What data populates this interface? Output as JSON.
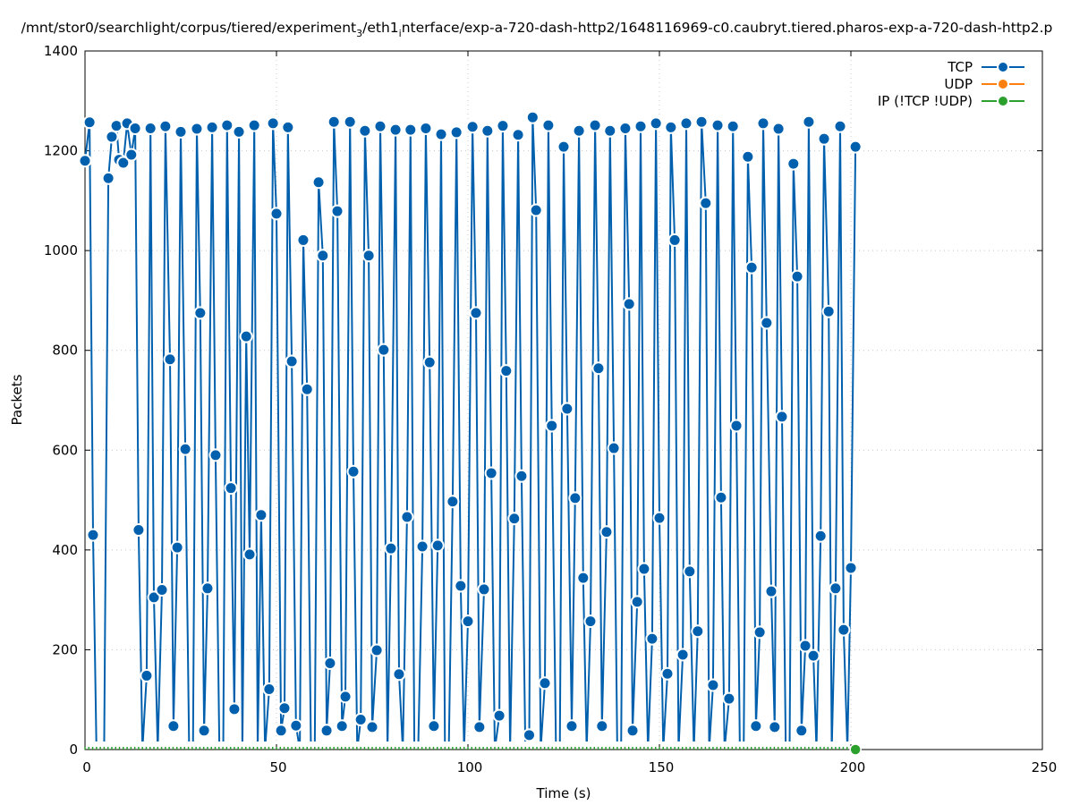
{
  "chart_data": {
    "type": "line",
    "title": "/mnt/stor0/searchlight/corpus/tiered/experiment_3/eth1_interface/exp-a-720-dash-http2/1648116969-c0.caubryt.tiered.pharos-exp-a-720-dash-http2.p",
    "xlabel": "Time (s)",
    "ylabel": "Packets",
    "xlim": [
      0,
      250
    ],
    "ylim": [
      0,
      1400
    ],
    "xticks": [
      "0",
      "50",
      "100",
      "150",
      "200",
      "250"
    ],
    "yticks": [
      "0",
      "200",
      "400",
      "600",
      "800",
      "1000",
      "1200",
      "1400"
    ],
    "grid": true,
    "legend_position": "top-right",
    "series": [
      {
        "name": "TCP",
        "color": "#0060ad",
        "points": [
          [
            0,
            1180
          ],
          [
            1.2,
            1257
          ],
          [
            2.1,
            430
          ],
          [
            3,
            0
          ],
          [
            5,
            0
          ],
          [
            6.1,
            1145
          ],
          [
            7.0,
            1228
          ],
          [
            8.2,
            1250
          ],
          [
            8.9,
            1182
          ],
          [
            10.0,
            1176
          ],
          [
            11.0,
            1255
          ],
          [
            12.1,
            1192
          ],
          [
            13.1,
            1245
          ],
          [
            14.0,
            440
          ],
          [
            15,
            0
          ],
          [
            16.1,
            148
          ],
          [
            17.1,
            1245
          ],
          [
            18.0,
            305
          ],
          [
            19,
            0
          ],
          [
            20.1,
            320
          ],
          [
            21.0,
            1249
          ],
          [
            22.2,
            782
          ],
          [
            23.1,
            47
          ],
          [
            24.1,
            405
          ],
          [
            25.0,
            1238
          ],
          [
            26.2,
            602
          ],
          [
            27.2,
            0
          ],
          [
            28.2,
            0
          ],
          [
            29.2,
            1244
          ],
          [
            30.1,
            875
          ],
          [
            31.1,
            38
          ],
          [
            32.0,
            323
          ],
          [
            33.2,
            1247
          ],
          [
            34.1,
            590
          ],
          [
            35.1,
            0
          ],
          [
            36.1,
            0
          ],
          [
            37.1,
            1251
          ],
          [
            38.1,
            524
          ],
          [
            39.0,
            81
          ],
          [
            40.2,
            1238
          ],
          [
            41.1,
            0
          ],
          [
            42.1,
            828
          ],
          [
            43.0,
            391
          ],
          [
            44.2,
            1251
          ],
          [
            45.1,
            0
          ],
          [
            46.0,
            470
          ],
          [
            47,
            0
          ],
          [
            48.1,
            121
          ],
          [
            49.1,
            1255
          ],
          [
            50.0,
            1074
          ],
          [
            51.2,
            38
          ],
          [
            52.1,
            83
          ],
          [
            53.0,
            1247
          ],
          [
            54.0,
            778
          ],
          [
            55.1,
            48
          ],
          [
            56.1,
            0
          ],
          [
            57.0,
            1021
          ],
          [
            58.0,
            722
          ],
          [
            59,
            0
          ],
          [
            60,
            0
          ],
          [
            61.0,
            1137
          ],
          [
            62.1,
            990
          ],
          [
            63.1,
            38
          ],
          [
            64.0,
            173
          ],
          [
            65.0,
            1258
          ],
          [
            65.9,
            1079
          ],
          [
            67.1,
            47
          ],
          [
            68.0,
            106
          ],
          [
            69.2,
            1258
          ],
          [
            70.1,
            557
          ],
          [
            71.1,
            0
          ],
          [
            72.0,
            60
          ],
          [
            73.1,
            1240
          ],
          [
            74.1,
            990
          ],
          [
            75.0,
            45
          ],
          [
            76.2,
            199
          ],
          [
            77.1,
            1249
          ],
          [
            78.0,
            801
          ],
          [
            79,
            0
          ],
          [
            79.9,
            403
          ],
          [
            81.1,
            1242
          ],
          [
            82.0,
            151
          ],
          [
            83,
            0
          ],
          [
            84.1,
            466
          ],
          [
            85.0,
            1242
          ],
          [
            86,
            0
          ],
          [
            87,
            0
          ],
          [
            88.1,
            407
          ],
          [
            89.0,
            1245
          ],
          [
            90.0,
            776
          ],
          [
            91.1,
            47
          ],
          [
            92.1,
            409
          ],
          [
            93.0,
            1233
          ],
          [
            94,
            0
          ],
          [
            95,
            0
          ],
          [
            96.0,
            497
          ],
          [
            97.0,
            1237
          ],
          [
            98.1,
            328
          ],
          [
            99,
            0
          ],
          [
            100.0,
            257
          ],
          [
            101.2,
            1248
          ],
          [
            102.1,
            875
          ],
          [
            103.0,
            45
          ],
          [
            104.2,
            321
          ],
          [
            105.1,
            1240
          ],
          [
            106.1,
            554
          ],
          [
            107,
            0
          ],
          [
            108.2,
            68
          ],
          [
            109.1,
            1250
          ],
          [
            110.0,
            759
          ],
          [
            111,
            0
          ],
          [
            112.1,
            463
          ],
          [
            113.1,
            1232
          ],
          [
            114.0,
            548
          ],
          [
            115,
            0
          ],
          [
            116.0,
            29
          ],
          [
            116.9,
            1267
          ],
          [
            117.8,
            1081
          ],
          [
            119,
            0
          ],
          [
            120.1,
            133
          ],
          [
            121.0,
            1251
          ],
          [
            121.9,
            649
          ],
          [
            123,
            0
          ],
          [
            124,
            0
          ],
          [
            125.0,
            1208
          ],
          [
            125.9,
            683
          ],
          [
            127.1,
            47
          ],
          [
            128.0,
            504
          ],
          [
            129.0,
            1240
          ],
          [
            130.1,
            344
          ],
          [
            131,
            0
          ],
          [
            132.0,
            257
          ],
          [
            133.2,
            1251
          ],
          [
            134.1,
            764
          ],
          [
            135.0,
            47
          ],
          [
            136.2,
            436
          ],
          [
            137.1,
            1240
          ],
          [
            138.1,
            604
          ],
          [
            139,
            0
          ],
          [
            140,
            0
          ],
          [
            141.1,
            1245
          ],
          [
            142.1,
            893
          ],
          [
            143.0,
            38
          ],
          [
            144.2,
            296
          ],
          [
            145.1,
            1249
          ],
          [
            146.0,
            362
          ],
          [
            147,
            0
          ],
          [
            148.1,
            222
          ],
          [
            149.1,
            1255
          ],
          [
            150.0,
            464
          ],
          [
            151,
            0
          ],
          [
            152.1,
            152
          ],
          [
            153.0,
            1247
          ],
          [
            154.0,
            1021
          ],
          [
            155,
            0
          ],
          [
            156.1,
            190
          ],
          [
            157.0,
            1255
          ],
          [
            157.9,
            357
          ],
          [
            159,
            0
          ],
          [
            160.0,
            237
          ],
          [
            161.0,
            1258
          ],
          [
            162.1,
            1095
          ],
          [
            163,
            0
          ],
          [
            164.0,
            129
          ],
          [
            165.2,
            1251
          ],
          [
            166.1,
            505
          ],
          [
            167,
            0
          ],
          [
            168.2,
            102
          ],
          [
            169.2,
            1249
          ],
          [
            170.1,
            649
          ],
          [
            171,
            0
          ],
          [
            172,
            0
          ],
          [
            173.1,
            1188
          ],
          [
            174.1,
            966
          ],
          [
            175.2,
            47
          ],
          [
            176.2,
            235
          ],
          [
            177.1,
            1255
          ],
          [
            178.0,
            855
          ],
          [
            179.2,
            317
          ],
          [
            180.1,
            45
          ],
          [
            181.1,
            1244
          ],
          [
            182.0,
            667
          ],
          [
            183,
            0
          ],
          [
            184,
            0
          ],
          [
            185.0,
            1174
          ],
          [
            186.0,
            948
          ],
          [
            187.1,
            38
          ],
          [
            188.1,
            208
          ],
          [
            189.0,
            1258
          ],
          [
            190.2,
            188
          ],
          [
            191,
            0
          ],
          [
            192.1,
            428
          ],
          [
            193.0,
            1224
          ],
          [
            194.2,
            878
          ],
          [
            195,
            0
          ],
          [
            196.0,
            323
          ],
          [
            197.2,
            1249
          ],
          [
            198.1,
            240
          ],
          [
            199.1,
            0
          ],
          [
            200.0,
            364
          ],
          [
            201.2,
            1208
          ]
        ]
      },
      {
        "name": "UDP",
        "color": "#ff7f0e",
        "points": []
      },
      {
        "name": "IP (!TCP  !UDP)",
        "color": "#2ca02c",
        "points": [
          [
            0,
            0
          ],
          [
            201.2,
            0
          ]
        ]
      }
    ]
  }
}
